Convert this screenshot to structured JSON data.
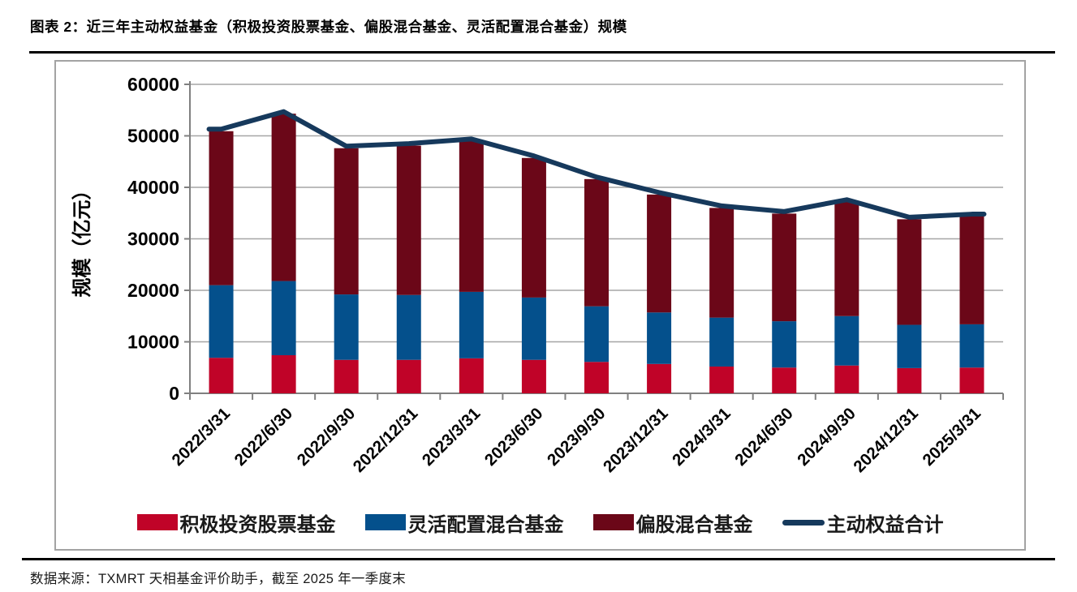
{
  "title": "图表 2：近三年主动权益基金（积极投资股票基金、偏股混合基金、灵活配置混合基金）规模",
  "footer": {
    "source": "数据来源：TXMRT 天相基金评价助手，截至 2025 年一季度末"
  },
  "chart_data": {
    "type": "bar",
    "subtype": "stacked-bar-with-total-line",
    "title": "",
    "xlabel": "",
    "ylabel": "规模（亿元）",
    "ylim": [
      0,
      60000
    ],
    "ytick_step": 10000,
    "grid": true,
    "legend_position": "bottom",
    "axis_color": "#808080",
    "grid_color": "#a6a6a6",
    "categories": [
      "2022/3/31",
      "2022/6/30",
      "2022/9/30",
      "2022/12/31",
      "2023/3/31",
      "2023/6/30",
      "2023/9/30",
      "2023/12/31",
      "2024/3/31",
      "2024/6/30",
      "2024/9/30",
      "2024/12/31",
      "2025/3/31"
    ],
    "series": [
      {
        "name": "积极投资股票基金",
        "type": "bar",
        "color": "#c00328",
        "values": [
          6900,
          7400,
          6500,
          6500,
          6800,
          6500,
          6100,
          5700,
          5200,
          5000,
          5400,
          4900,
          5000
        ]
      },
      {
        "name": "灵活配置混合基金",
        "type": "bar",
        "color": "#04508c",
        "values": [
          14100,
          14400,
          12700,
          12600,
          12900,
          12100,
          10800,
          10000,
          9500,
          9000,
          9600,
          8400,
          8400
        ]
      },
      {
        "name": "偏股混合基金",
        "type": "bar",
        "color": "#6b0718",
        "values": [
          29900,
          32500,
          28400,
          29000,
          29300,
          27100,
          24700,
          22900,
          21300,
          20900,
          22200,
          20500,
          21000
        ]
      },
      {
        "name": "主动权益合计",
        "type": "line",
        "color": "#16395c",
        "values": [
          50900,
          54300,
          47600,
          48100,
          49000,
          45700,
          41600,
          38600,
          36000,
          34900,
          37200,
          33800,
          34400
        ]
      }
    ]
  }
}
